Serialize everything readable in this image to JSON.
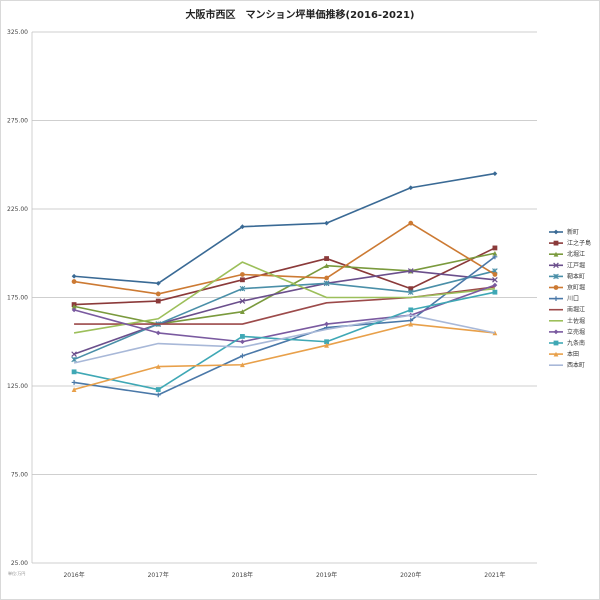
{
  "chart_data": {
    "type": "line",
    "title": "大阪市西区　マンション坪単価推移(2016-2021)",
    "note": "単位:万円",
    "x": [
      "2016年",
      "2017年",
      "2018年",
      "2019年",
      "2020年",
      "2021年"
    ],
    "ylim": [
      25,
      325
    ],
    "yticks": [
      "325.00",
      "275.00",
      "225.00",
      "175.00",
      "125.00",
      "75.00",
      "25.00"
    ],
    "grid": "horizontal",
    "legend_position": "right",
    "series": [
      {
        "name": "新町",
        "color": "#3a6a95",
        "marker": "diamond",
        "values": [
          187,
          183,
          215,
          217,
          237,
          245
        ]
      },
      {
        "name": "江之子島",
        "color": "#8b3a3a",
        "marker": "square",
        "values": [
          171,
          173,
          185,
          197,
          180,
          203
        ]
      },
      {
        "name": "北堀江",
        "color": "#7a9a3d",
        "marker": "triangle",
        "values": [
          170,
          160,
          167,
          193,
          190,
          200
        ]
      },
      {
        "name": "江戸堀",
        "color": "#6b4f8c",
        "marker": "x",
        "values": [
          143,
          160,
          173,
          183,
          190,
          185
        ]
      },
      {
        "name": "靭本町",
        "color": "#4a8fa8",
        "marker": "asterisk",
        "values": [
          140,
          160,
          180,
          183,
          178,
          190
        ]
      },
      {
        "name": "京町堀",
        "color": "#cc7a33",
        "marker": "circle",
        "values": [
          184,
          177,
          188,
          186,
          217,
          188
        ]
      },
      {
        "name": "川口",
        "color": "#4a78a8",
        "marker": "plus",
        "values": [
          127,
          120,
          142,
          158,
          162,
          198
        ]
      },
      {
        "name": "南堀江",
        "color": "#9c4a4a",
        "marker": "none",
        "values": [
          160,
          160,
          160,
          172,
          175,
          181
        ]
      },
      {
        "name": "土佐堀",
        "color": "#9cbf5a",
        "marker": "none",
        "values": [
          155,
          163,
          195,
          175,
          175,
          180
        ]
      },
      {
        "name": "立売堀",
        "color": "#7a5aa0",
        "marker": "diamond",
        "values": [
          168,
          155,
          150,
          160,
          165,
          182
        ]
      },
      {
        "name": "九条南",
        "color": "#3fa8b5",
        "marker": "square",
        "values": [
          133,
          123,
          153,
          150,
          168,
          178
        ]
      },
      {
        "name": "本田",
        "color": "#e8a04a",
        "marker": "triangle",
        "values": [
          123,
          136,
          137,
          148,
          160,
          155
        ]
      },
      {
        "name": "西本町",
        "color": "#a8b8d8",
        "marker": "none",
        "values": [
          138,
          149,
          147,
          157,
          165,
          155
        ]
      }
    ]
  }
}
